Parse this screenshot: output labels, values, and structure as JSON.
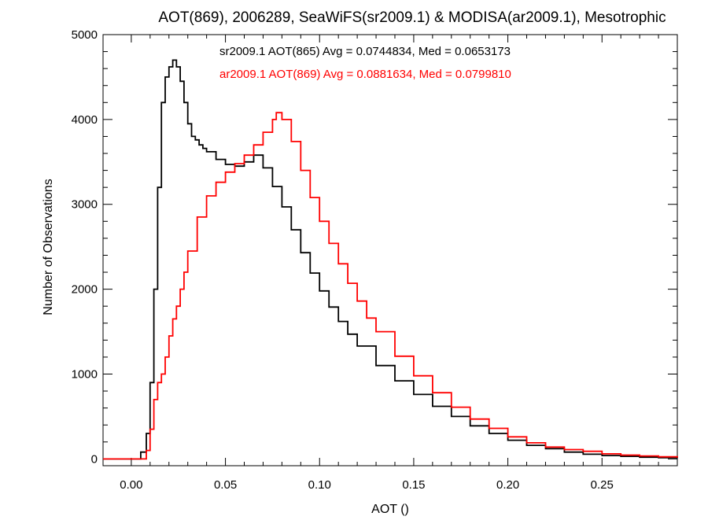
{
  "chart_data": {
    "type": "line",
    "title": "AOT(869), 2006289, SeaWiFS(sr2009.1) & MODISA(ar2009.1), Mesotrophic",
    "xlabel": "AOT ()",
    "ylabel": "Number of Observations",
    "xlim": [
      -0.015,
      0.29
    ],
    "ylim": [
      -80,
      5000
    ],
    "x_ticks": [
      "0.00",
      "0.05",
      "0.10",
      "0.15",
      "0.20",
      "0.25"
    ],
    "y_ticks": [
      "0",
      "1000",
      "2000",
      "3000",
      "4000",
      "5000"
    ],
    "annotations": [
      "sr2009.1 AOT(865) Avg = 0.0744834, Med = 0.0653173",
      "ar2009.1 AOT(869) Avg = 0.0881634, Med = 0.0799810"
    ],
    "line_style": "step histogram",
    "series": [
      {
        "color": "#000000",
        "x": [
          -0.015,
          0.0,
          0.005,
          0.008,
          0.01,
          0.012,
          0.014,
          0.016,
          0.018,
          0.02,
          0.022,
          0.024,
          0.026,
          0.028,
          0.03,
          0.032,
          0.034,
          0.036,
          0.038,
          0.04,
          0.045,
          0.05,
          0.055,
          0.06,
          0.065,
          0.07,
          0.075,
          0.08,
          0.085,
          0.09,
          0.095,
          0.1,
          0.105,
          0.11,
          0.115,
          0.12,
          0.13,
          0.14,
          0.15,
          0.16,
          0.17,
          0.18,
          0.19,
          0.2,
          0.21,
          0.22,
          0.23,
          0.24,
          0.25,
          0.26,
          0.27,
          0.28,
          0.29
        ],
        "y": [
          0,
          0,
          80,
          300,
          900,
          2000,
          3200,
          4200,
          4500,
          4620,
          4700,
          4620,
          4450,
          4200,
          3950,
          3800,
          3760,
          3700,
          3660,
          3620,
          3530,
          3470,
          3450,
          3500,
          3580,
          3430,
          3210,
          2970,
          2700,
          2430,
          2190,
          1980,
          1790,
          1620,
          1470,
          1330,
          1100,
          920,
          760,
          620,
          500,
          390,
          300,
          220,
          160,
          120,
          80,
          55,
          40,
          30,
          20,
          15,
          10
        ]
      },
      {
        "color": "#ff0000",
        "x": [
          -0.015,
          0.005,
          0.008,
          0.01,
          0.012,
          0.014,
          0.016,
          0.018,
          0.02,
          0.022,
          0.024,
          0.026,
          0.028,
          0.03,
          0.035,
          0.04,
          0.045,
          0.05,
          0.055,
          0.06,
          0.065,
          0.07,
          0.075,
          0.077,
          0.08,
          0.085,
          0.09,
          0.095,
          0.1,
          0.105,
          0.11,
          0.115,
          0.12,
          0.125,
          0.13,
          0.14,
          0.15,
          0.16,
          0.17,
          0.18,
          0.19,
          0.2,
          0.21,
          0.22,
          0.23,
          0.24,
          0.25,
          0.26,
          0.27,
          0.28,
          0.29
        ],
        "y": [
          0,
          0,
          100,
          350,
          700,
          900,
          1000,
          1200,
          1450,
          1650,
          1800,
          2000,
          2200,
          2450,
          2850,
          3100,
          3260,
          3380,
          3480,
          3580,
          3700,
          3850,
          4000,
          4080,
          4000,
          3740,
          3400,
          3080,
          2800,
          2540,
          2300,
          2070,
          1860,
          1660,
          1500,
          1210,
          980,
          780,
          610,
          470,
          360,
          260,
          190,
          140,
          110,
          90,
          60,
          45,
          35,
          25,
          15
        ]
      }
    ]
  }
}
